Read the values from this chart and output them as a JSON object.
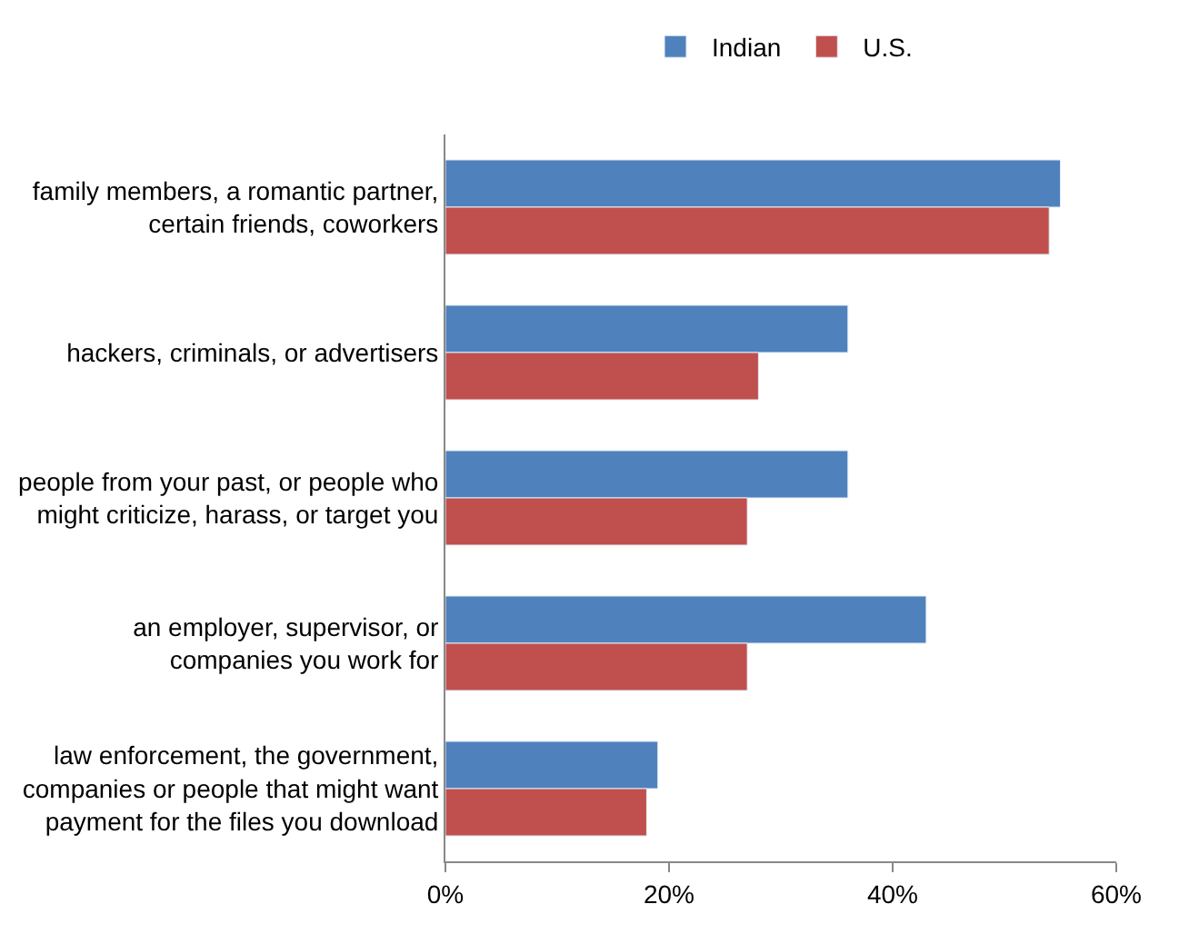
{
  "chart_data": {
    "type": "bar",
    "orientation": "horizontal",
    "categories": [
      "family members, a romantic partner,\ncertain friends, coworkers",
      "hackers, criminals, or advertisers",
      "people from your past, or people who\nmight criticize, harass, or target you",
      "an employer, supervisor, or\ncompanies you work for",
      "law enforcement, the government,\ncompanies or people that might want\npayment for the files you download"
    ],
    "series": [
      {
        "name": "Indian",
        "color": "#4f81bd",
        "values": [
          55,
          36,
          36,
          43,
          19
        ]
      },
      {
        "name": "U.S.",
        "color": "#c0504d",
        "values": [
          54,
          28,
          27,
          27,
          18
        ]
      }
    ],
    "xlim": [
      0,
      60
    ],
    "xticks": [
      {
        "value": 0,
        "label": "0%"
      },
      {
        "value": 20,
        "label": "20%"
      },
      {
        "value": 40,
        "label": "40%"
      },
      {
        "value": 60,
        "label": "60%"
      }
    ],
    "legend": "top"
  }
}
